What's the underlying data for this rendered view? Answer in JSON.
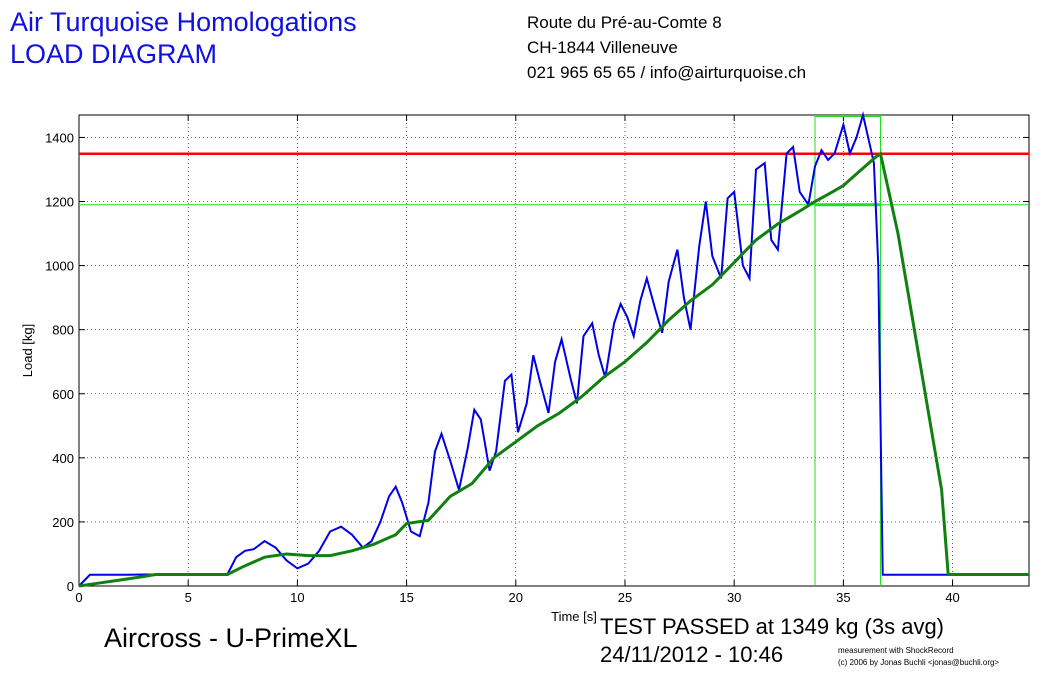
{
  "header": {
    "title_line1": "Air Turquoise Homologations",
    "title_line2": "LOAD DIAGRAM",
    "address_line1": "Route du Pré-au-Comte 8",
    "address_line2": "CH-1844 Villeneuve",
    "address_line3": "021 965 65 65 / info@airturquoise.ch"
  },
  "footer": {
    "aircraft": "Aircross - U-PrimeXL",
    "result": "TEST PASSED at 1349 kg (3s avg)",
    "datetime": "24/11/2012 - 10:46",
    "credit_line1": "measurement with ShockRecord",
    "credit_line2": "(c) 2006 by Jonas Buchli <jonas@buchli.org>"
  },
  "colors": {
    "title": "#1010e0",
    "raw_load": "#0000e6",
    "avg_load": "#108010",
    "limit_line": "#ff0000",
    "window_lines": "#22dd22"
  },
  "chart_data": {
    "type": "line",
    "xlabel": "Time [s]",
    "ylabel": "Load [kg]",
    "xlim": [
      0,
      43.5
    ],
    "ylim": [
      0,
      1470
    ],
    "xticks": [
      0,
      5,
      10,
      15,
      20,
      25,
      30,
      35,
      40
    ],
    "yticks": [
      0,
      200,
      400,
      600,
      800,
      1000,
      1200,
      1400
    ],
    "grid": true,
    "limit_load": 1349,
    "hold_level": 1190,
    "window_start": 33.7,
    "window_end": 36.7,
    "series": [
      {
        "key": "raw",
        "x": [
          0,
          0.5,
          1,
          2,
          3,
          4,
          5,
          6,
          6.8,
          7.2,
          7.6,
          8.0,
          8.5,
          9.0,
          9.5,
          10.0,
          10.5,
          11.0,
          11.5,
          12.0,
          12.5,
          13.0,
          13.4,
          13.8,
          14.2,
          14.5,
          14.8,
          15.2,
          15.6,
          16.0,
          16.3,
          16.6,
          17.0,
          17.4,
          17.8,
          18.1,
          18.4,
          18.8,
          19.1,
          19.5,
          19.8,
          20.1,
          20.5,
          20.8,
          21.1,
          21.5,
          21.8,
          22.1,
          22.5,
          22.8,
          23.1,
          23.5,
          23.8,
          24.1,
          24.5,
          24.8,
          25.1,
          25.4,
          25.7,
          26.0,
          26.4,
          26.7,
          27.0,
          27.4,
          27.7,
          28.0,
          28.4,
          28.7,
          29.0,
          29.4,
          29.7,
          30.0,
          30.4,
          30.7,
          31.0,
          31.4,
          31.7,
          32.0,
          32.4,
          32.7,
          33.0,
          33.4,
          33.7,
          34.0,
          34.3,
          34.6,
          35.0,
          35.3,
          35.6,
          35.9,
          36.2,
          36.4,
          36.6,
          36.8,
          36.9,
          37.0,
          38,
          39,
          40,
          41,
          42,
          43.5
        ],
        "y": [
          0,
          35,
          35,
          35,
          36,
          36,
          36,
          36,
          37,
          90,
          110,
          115,
          140,
          120,
          80,
          55,
          70,
          110,
          170,
          185,
          160,
          120,
          140,
          200,
          280,
          310,
          260,
          170,
          155,
          260,
          420,
          475,
          390,
          300,
          430,
          550,
          520,
          360,
          420,
          640,
          660,
          480,
          570,
          720,
          640,
          540,
          700,
          770,
          650,
          570,
          780,
          820,
          720,
          650,
          820,
          880,
          840,
          780,
          890,
          960,
          860,
          790,
          950,
          1050,
          900,
          800,
          1060,
          1200,
          1030,
          960,
          1210,
          1230,
          1000,
          960,
          1300,
          1320,
          1080,
          1050,
          1350,
          1370,
          1230,
          1190,
          1310,
          1360,
          1330,
          1350,
          1440,
          1350,
          1400,
          1470,
          1380,
          1320,
          1000,
          35,
          35,
          35,
          35,
          35,
          35,
          35,
          35,
          35
        ]
      },
      {
        "key": "avg",
        "x": [
          0,
          1,
          2,
          3,
          3.5,
          4,
          5,
          6,
          6.8,
          7.5,
          8.5,
          9.5,
          10.5,
          11.5,
          12.5,
          13.5,
          14.5,
          15.0,
          16.0,
          17.0,
          17.5,
          18.0,
          19.0,
          20.0,
          21.0,
          22.0,
          23.0,
          24.0,
          25.0,
          26.0,
          27.0,
          28.0,
          29.0,
          30.0,
          31.0,
          32.0,
          33.0,
          33.7,
          34.5,
          35.0,
          35.5,
          36.0,
          36.5,
          36.7,
          37.5,
          38.5,
          39.5,
          39.8,
          41,
          42,
          43.5
        ],
        "y": [
          0,
          10,
          20,
          30,
          36,
          36,
          36,
          36,
          36,
          60,
          90,
          100,
          95,
          95,
          110,
          130,
          160,
          195,
          205,
          280,
          300,
          320,
          400,
          450,
          500,
          540,
          590,
          650,
          700,
          760,
          830,
          890,
          940,
          1010,
          1080,
          1130,
          1170,
          1200,
          1230,
          1250,
          1280,
          1310,
          1340,
          1349,
          1100,
          700,
          300,
          36,
          36,
          36,
          36
        ]
      }
    ]
  }
}
